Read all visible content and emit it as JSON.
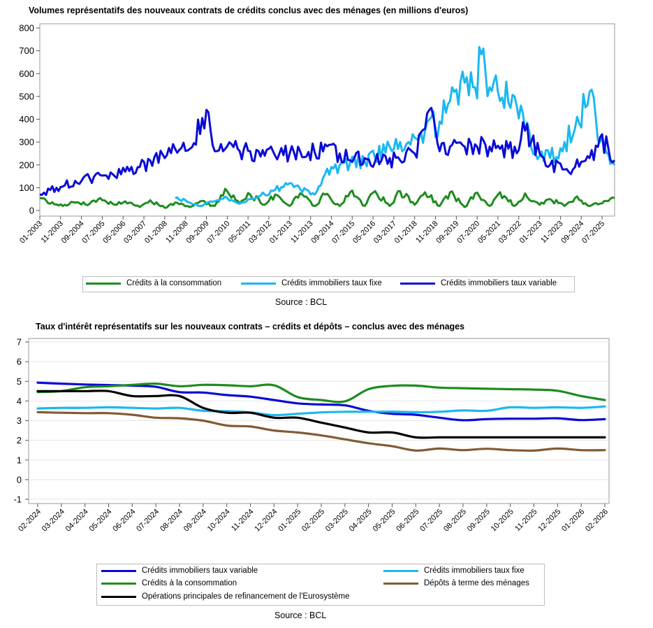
{
  "charts": [
    {
      "title": "Volumes représentatifs des nouveaux contrats de crédits conclus avec des ménages (en millions d'euros)",
      "source": "Source : BCL",
      "legend": [
        "Crédits à la consommation",
        "Crédits immobiliers taux fixe",
        "Crédits immobiliers taux variable"
      ]
    },
    {
      "title": "Taux d'intérêt représentatifs sur les nouveaux contrats – crédits et dépôts – conclus avec des ménages",
      "source": "Source : BCL",
      "legend": [
        "Crédits immobiliers taux variable",
        "Crédits immobiliers taux fixe",
        "Crédits à la consommation",
        "Dépôts à terme des ménages",
        "Opérations principales de refinancement de l'Eurosystème"
      ]
    }
  ],
  "chart_data": [
    {
      "type": "line",
      "title": "Volumes représentatifs des nouveaux contrats de crédits conclus avec des ménages (en millions d'euros)",
      "xlabel": "",
      "ylabel": "",
      "ylim": [
        0,
        800
      ],
      "yticks": [
        0,
        100,
        200,
        300,
        400,
        500,
        600,
        700,
        800
      ],
      "x_range": [
        "01-2003",
        "01-2026"
      ],
      "x_tick_labels": [
        "01-2003",
        "11-2003",
        "09-2004",
        "07-2005",
        "05-2006",
        "03-2007",
        "01-2008",
        "11-2008",
        "09-2009",
        "07-2010",
        "05-2011",
        "03-2012",
        "01-2013",
        "11-2013",
        "09-2014",
        "07-2015",
        "05-2016",
        "03-2017",
        "01-2018",
        "11-2018",
        "09-2019",
        "07-2020",
        "05-2021",
        "03-2022",
        "01-2023",
        "11-2023",
        "09-2024",
        "07-2025"
      ],
      "legend_position": "bottom",
      "series": [
        {
          "name": "Crédits à la consommation",
          "color": "#1e8c1e",
          "points": [
            [
              "01-2003",
              55
            ],
            [
              "06-2003",
              30
            ],
            [
              "01-2004",
              25
            ],
            [
              "06-2004",
              35
            ],
            [
              "01-2005",
              30
            ],
            [
              "06-2005",
              55
            ],
            [
              "01-2006",
              25
            ],
            [
              "06-2006",
              40
            ],
            [
              "01-2007",
              15
            ],
            [
              "06-2007",
              45
            ],
            [
              "01-2008",
              12
            ],
            [
              "06-2008",
              35
            ],
            [
              "01-2009",
              15
            ],
            [
              "06-2009",
              40
            ],
            [
              "01-2010",
              20
            ],
            [
              "06-2010",
              95
            ],
            [
              "01-2011",
              30
            ],
            [
              "06-2011",
              70
            ],
            [
              "01-2012",
              25
            ],
            [
              "06-2012",
              70
            ],
            [
              "01-2013",
              20
            ],
            [
              "06-2013",
              75
            ],
            [
              "01-2014",
              20
            ],
            [
              "06-2014",
              70
            ],
            [
              "01-2015",
              20
            ],
            [
              "06-2015",
              80
            ],
            [
              "01-2016",
              20
            ],
            [
              "06-2016",
              85
            ],
            [
              "01-2017",
              20
            ],
            [
              "06-2017",
              85
            ],
            [
              "01-2018",
              25
            ],
            [
              "06-2018",
              80
            ],
            [
              "01-2019",
              20
            ],
            [
              "06-2019",
              80
            ],
            [
              "01-2020",
              15
            ],
            [
              "06-2020",
              75
            ],
            [
              "01-2021",
              20
            ],
            [
              "06-2021",
              80
            ],
            [
              "01-2022",
              20
            ],
            [
              "06-2022",
              75
            ],
            [
              "01-2023",
              25
            ],
            [
              "06-2023",
              50
            ],
            [
              "01-2024",
              20
            ],
            [
              "06-2024",
              55
            ],
            [
              "01-2025",
              20
            ],
            [
              "06-2025",
              30
            ],
            [
              "01-2026",
              55
            ]
          ]
        },
        {
          "name": "Crédits immobiliers taux fixe",
          "color": "#1ab8f0",
          "points": [
            [
              "06-2008",
              55
            ],
            [
              "01-2009",
              35
            ],
            [
              "06-2009",
              20
            ],
            [
              "01-2010",
              40
            ],
            [
              "06-2010",
              60
            ],
            [
              "01-2011",
              30
            ],
            [
              "06-2011",
              50
            ],
            [
              "01-2012",
              70
            ],
            [
              "06-2012",
              90
            ],
            [
              "01-2013",
              120
            ],
            [
              "06-2013",
              95
            ],
            [
              "01-2014",
              70
            ],
            [
              "06-2014",
              160
            ],
            [
              "01-2015",
              200
            ],
            [
              "06-2015",
              210
            ],
            [
              "01-2016",
              215
            ],
            [
              "06-2016",
              230
            ],
            [
              "01-2017",
              280
            ],
            [
              "06-2017",
              300
            ],
            [
              "01-2018",
              320
            ],
            [
              "06-2018",
              350
            ],
            [
              "01-2019",
              390
            ],
            [
              "06-2019",
              480
            ],
            [
              "01-2020",
              560
            ],
            [
              "06-2020",
              540
            ],
            [
              "10-2020",
              710
            ],
            [
              "01-2021",
              540
            ],
            [
              "06-2021",
              480
            ],
            [
              "01-2022",
              500
            ],
            [
              "06-2022",
              350
            ],
            [
              "01-2023",
              240
            ],
            [
              "06-2023",
              230
            ],
            [
              "01-2024",
              300
            ],
            [
              "06-2024",
              360
            ],
            [
              "01-2025",
              520
            ],
            [
              "06-2025",
              300
            ],
            [
              "01-2026",
              200
            ]
          ]
        },
        {
          "name": "Crédits immobiliers taux variable",
          "color": "#0a0ad6",
          "points": [
            [
              "01-2003",
              70
            ],
            [
              "06-2003",
              90
            ],
            [
              "01-2004",
              110
            ],
            [
              "06-2004",
              130
            ],
            [
              "01-2005",
              140
            ],
            [
              "06-2005",
              155
            ],
            [
              "01-2006",
              150
            ],
            [
              "06-2006",
              170
            ],
            [
              "01-2007",
              190
            ],
            [
              "06-2007",
              220
            ],
            [
              "01-2008",
              230
            ],
            [
              "06-2008",
              270
            ],
            [
              "01-2009",
              270
            ],
            [
              "10-2009",
              430
            ],
            [
              "01-2010",
              260
            ],
            [
              "06-2010",
              270
            ],
            [
              "01-2011",
              260
            ],
            [
              "06-2011",
              260
            ],
            [
              "01-2012",
              240
            ],
            [
              "06-2012",
              240
            ],
            [
              "01-2013",
              250
            ],
            [
              "06-2013",
              260
            ],
            [
              "01-2014",
              255
            ],
            [
              "06-2014",
              290
            ],
            [
              "01-2015",
              250
            ],
            [
              "06-2015",
              220
            ],
            [
              "01-2016",
              230
            ],
            [
              "06-2016",
              215
            ],
            [
              "01-2017",
              230
            ],
            [
              "06-2017",
              220
            ],
            [
              "01-2018",
              250
            ],
            [
              "09-2018",
              450
            ],
            [
              "01-2019",
              260
            ],
            [
              "06-2019",
              280
            ],
            [
              "01-2020",
              280
            ],
            [
              "06-2020",
              290
            ],
            [
              "01-2021",
              280
            ],
            [
              "06-2021",
              270
            ],
            [
              "01-2022",
              280
            ],
            [
              "06-2022",
              350
            ],
            [
              "01-2023",
              250
            ],
            [
              "06-2023",
              200
            ],
            [
              "01-2024",
              180
            ],
            [
              "06-2024",
              190
            ],
            [
              "01-2025",
              230
            ],
            [
              "06-2025",
              320
            ],
            [
              "01-2026",
              220
            ]
          ]
        }
      ]
    },
    {
      "type": "line",
      "title": "Taux d'intérêt représentatifs sur les nouveaux contrats – crédits et dépôts – conclus avec des ménages",
      "xlabel": "",
      "ylabel": "",
      "ylim": [
        -1,
        7
      ],
      "yticks": [
        -1,
        0,
        1,
        2,
        3,
        4,
        5,
        6,
        7
      ],
      "categories": [
        "02-2024",
        "03-2024",
        "04-2024",
        "05-2024",
        "06-2024",
        "07-2024",
        "08-2024",
        "09-2024",
        "10-2024",
        "11-2024",
        "12-2024",
        "01-2025",
        "02-2025",
        "03-2025",
        "04-2025",
        "05-2025",
        "06-2025",
        "07-2025",
        "08-2025",
        "09-2025",
        "10-2025",
        "11-2025",
        "12-2025",
        "01-2026",
        "02-2026"
      ],
      "legend_position": "bottom",
      "series": [
        {
          "name": "Crédits immobiliers taux variable",
          "color": "#0a0ad6",
          "values": [
            4.93,
            4.88,
            4.84,
            4.81,
            4.78,
            4.72,
            4.45,
            4.43,
            4.3,
            4.22,
            4.05,
            3.88,
            3.82,
            3.78,
            3.5,
            3.35,
            3.3,
            3.15,
            3.02,
            3.08,
            3.1,
            3.1,
            3.12,
            3.03,
            3.08
          ]
        },
        {
          "name": "Crédits immobiliers taux fixe",
          "color": "#1ab8f0",
          "values": [
            3.62,
            3.65,
            3.65,
            3.68,
            3.65,
            3.62,
            3.65,
            3.5,
            3.48,
            3.42,
            3.28,
            3.35,
            3.42,
            3.45,
            3.45,
            3.46,
            3.43,
            3.45,
            3.52,
            3.5,
            3.68,
            3.65,
            3.68,
            3.65,
            3.72
          ]
        },
        {
          "name": "Crédits à la consommation",
          "color": "#1e8c1e",
          "values": [
            4.45,
            4.5,
            4.7,
            4.75,
            4.82,
            4.88,
            4.75,
            4.82,
            4.8,
            4.75,
            4.8,
            4.2,
            4.05,
            3.98,
            4.6,
            4.77,
            4.78,
            4.68,
            4.65,
            4.62,
            4.6,
            4.58,
            4.52,
            4.25,
            4.05
          ]
        },
        {
          "name": "Dépôts à terme des ménages",
          "color": "#845a33",
          "values": [
            3.43,
            3.4,
            3.38,
            3.38,
            3.3,
            3.15,
            3.12,
            3.0,
            2.75,
            2.7,
            2.5,
            2.4,
            2.25,
            2.05,
            1.85,
            1.7,
            1.48,
            1.58,
            1.5,
            1.57,
            1.5,
            1.48,
            1.58,
            1.5,
            1.5
          ]
        },
        {
          "name": "Opérations principales de refinancement de l'Eurosystème",
          "color": "#000000",
          "values": [
            4.5,
            4.5,
            4.5,
            4.5,
            4.25,
            4.25,
            4.25,
            3.65,
            3.4,
            3.4,
            3.15,
            3.15,
            2.9,
            2.65,
            2.4,
            2.4,
            2.15,
            2.15,
            2.15,
            2.15,
            2.15,
            2.15,
            2.15,
            2.15,
            2.15
          ]
        }
      ]
    }
  ]
}
